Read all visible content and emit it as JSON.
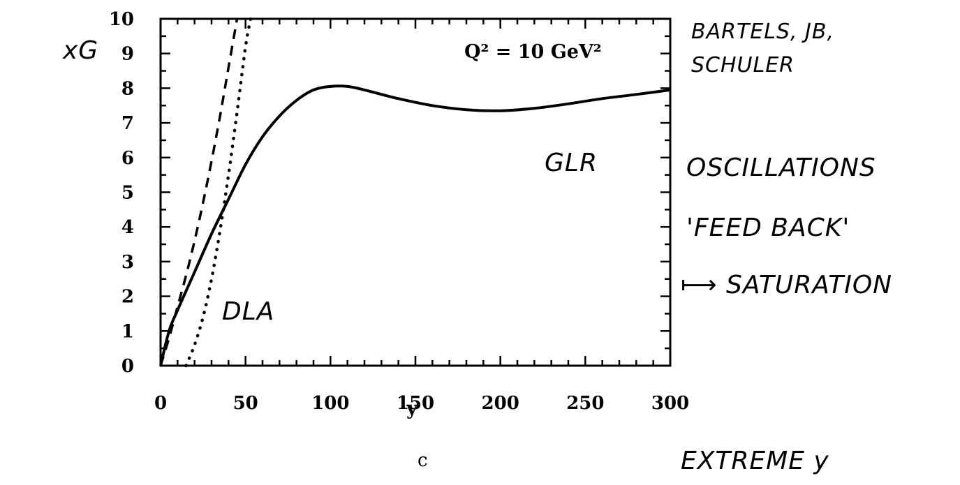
{
  "chart_data": {
    "type": "line",
    "x_ticks": [
      0,
      50,
      100,
      150,
      200,
      250,
      300
    ],
    "y_ticks": [
      0,
      1,
      2,
      3,
      4,
      5,
      6,
      7,
      8,
      9,
      10
    ],
    "xlim": [
      0,
      300
    ],
    "ylim": [
      0,
      10
    ],
    "xlabel": "y",
    "ylabel": "xG",
    "caption": "c",
    "grid": false,
    "annotations": {
      "q2": "Q² = 10 GeV²",
      "authors_line1": "BARTELS, JB,",
      "authors_line2": "SCHULER",
      "glr_label": "GLR",
      "dla_label": "DLA",
      "note1": "OSCILLATIONS",
      "note2": "'FEED BACK'",
      "note3_arrow": "⟼",
      "note3": "SATURATION",
      "bottom_note": "EXTREME y"
    },
    "series": [
      {
        "name": "GLR",
        "style": "solid",
        "x": [
          0,
          5,
          10,
          20,
          30,
          40,
          50,
          60,
          70,
          80,
          90,
          100,
          110,
          120,
          140,
          160,
          180,
          200,
          220,
          240,
          260,
          280,
          300
        ],
        "y": [
          0,
          1.0,
          1.6,
          2.7,
          3.8,
          4.8,
          5.8,
          6.6,
          7.2,
          7.65,
          7.95,
          8.05,
          8.05,
          7.95,
          7.7,
          7.5,
          7.38,
          7.35,
          7.42,
          7.55,
          7.7,
          7.82,
          7.95
        ]
      },
      {
        "name": "",
        "style": "dashed",
        "x": [
          0,
          5,
          10,
          15,
          20,
          25,
          30,
          35,
          40,
          45
        ],
        "y": [
          0,
          0.8,
          1.7,
          2.6,
          3.6,
          4.7,
          5.9,
          7.2,
          8.6,
          10
        ]
      },
      {
        "name": "DLA",
        "style": "dotted",
        "x": [
          15,
          20,
          25,
          30,
          35,
          40,
          45,
          50,
          53
        ],
        "y": [
          0,
          0.6,
          1.4,
          2.5,
          3.9,
          5.5,
          7.3,
          9.2,
          10
        ]
      }
    ]
  }
}
